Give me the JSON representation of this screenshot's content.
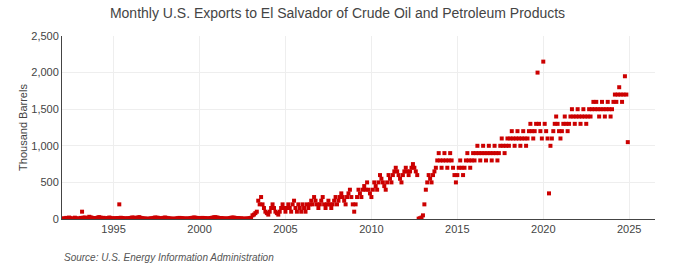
{
  "chart_data": {
    "type": "scatter",
    "title": "Monthly U.S. Exports to El Salvador of Crude Oil and Petroleum Products",
    "ylabel": "Thousand Barrels",
    "source": "Source: U.S. Energy Information Administration",
    "color": "#CC0000",
    "marker": "square",
    "grid": true,
    "xlim": [
      1992.0,
      2026.5
    ],
    "ylim": [
      0,
      2500
    ],
    "xticks": [
      1995,
      2000,
      2005,
      2010,
      2015,
      2020,
      2025
    ],
    "yticks": [
      0,
      500,
      {
        "value": 1000,
        "label": "1,000"
      },
      {
        "value": 1500,
        "label": "1,500"
      },
      {
        "value": 2000,
        "label": "2,000"
      },
      {
        "value": 2500,
        "label": "2,500"
      }
    ],
    "x": [
      1992.083,
      1992.167,
      1992.25,
      1992.333,
      1992.417,
      1992.5,
      1992.583,
      1992.667,
      1992.75,
      1992.833,
      1992.917,
      1993.0,
      1993.083,
      1993.167,
      1993.25,
      1993.333,
      1993.417,
      1993.5,
      1993.583,
      1993.667,
      1993.75,
      1993.833,
      1993.917,
      1994.0,
      1994.083,
      1994.167,
      1994.25,
      1994.333,
      1994.417,
      1994.5,
      1994.583,
      1994.667,
      1994.75,
      1994.833,
      1994.917,
      1995.0,
      1995.083,
      1995.167,
      1995.25,
      1995.333,
      1995.417,
      1995.5,
      1995.583,
      1995.667,
      1995.75,
      1995.833,
      1995.917,
      1996.0,
      1996.083,
      1996.167,
      1996.25,
      1996.333,
      1996.417,
      1996.5,
      1996.583,
      1996.667,
      1996.75,
      1996.833,
      1996.917,
      1997.0,
      1997.083,
      1997.167,
      1997.25,
      1997.333,
      1997.417,
      1997.5,
      1997.583,
      1997.667,
      1997.75,
      1997.833,
      1997.917,
      1998.0,
      1998.083,
      1998.167,
      1998.25,
      1998.333,
      1998.417,
      1998.5,
      1998.583,
      1998.667,
      1998.75,
      1998.833,
      1998.917,
      1999.0,
      1999.083,
      1999.167,
      1999.25,
      1999.333,
      1999.417,
      1999.5,
      1999.583,
      1999.667,
      1999.75,
      1999.833,
      1999.917,
      2000.0,
      2000.083,
      2000.167,
      2000.25,
      2000.333,
      2000.417,
      2000.5,
      2000.583,
      2000.667,
      2000.75,
      2000.833,
      2000.917,
      2001.0,
      2001.083,
      2001.167,
      2001.25,
      2001.333,
      2001.417,
      2001.5,
      2001.583,
      2001.667,
      2001.75,
      2001.833,
      2001.917,
      2002.0,
      2002.083,
      2002.167,
      2002.25,
      2002.333,
      2002.417,
      2002.5,
      2002.583,
      2002.667,
      2002.75,
      2002.833,
      2002.917,
      2003.0,
      2003.083,
      2003.167,
      2003.25,
      2003.333,
      2003.417,
      2003.5,
      2003.583,
      2003.667,
      2003.75,
      2003.833,
      2003.917,
      2004.0,
      2004.083,
      2004.167,
      2004.25,
      2004.333,
      2004.417,
      2004.5,
      2004.583,
      2004.667,
      2004.75,
      2004.833,
      2004.917,
      2005.0,
      2005.083,
      2005.167,
      2005.25,
      2005.333,
      2005.417,
      2005.5,
      2005.583,
      2005.667,
      2005.75,
      2005.833,
      2005.917,
      2006.0,
      2006.083,
      2006.167,
      2006.25,
      2006.333,
      2006.417,
      2006.5,
      2006.583,
      2006.667,
      2006.75,
      2006.833,
      2006.917,
      2007.0,
      2007.083,
      2007.167,
      2007.25,
      2007.333,
      2007.417,
      2007.5,
      2007.583,
      2007.667,
      2007.75,
      2007.833,
      2007.917,
      2008.0,
      2008.083,
      2008.167,
      2008.25,
      2008.333,
      2008.417,
      2008.5,
      2008.583,
      2008.667,
      2008.75,
      2008.833,
      2008.917,
      2009.0,
      2009.083,
      2009.167,
      2009.25,
      2009.333,
      2009.417,
      2009.5,
      2009.583,
      2009.667,
      2009.75,
      2009.833,
      2009.917,
      2010.0,
      2010.083,
      2010.167,
      2010.25,
      2010.333,
      2010.417,
      2010.5,
      2010.583,
      2010.667,
      2010.75,
      2010.833,
      2010.917,
      2011.0,
      2011.083,
      2011.167,
      2011.25,
      2011.333,
      2011.417,
      2011.5,
      2011.583,
      2011.667,
      2011.75,
      2011.833,
      2011.917,
      2012.0,
      2012.083,
      2012.167,
      2012.25,
      2012.333,
      2012.417,
      2012.5,
      2012.583,
      2012.667,
      2012.75,
      2012.833,
      2012.917,
      2013.0,
      2013.083,
      2013.167,
      2013.25,
      2013.333,
      2013.417,
      2013.5,
      2013.583,
      2013.667,
      2013.75,
      2013.833,
      2013.917,
      2014.0,
      2014.083,
      2014.167,
      2014.25,
      2014.333,
      2014.417,
      2014.5,
      2014.583,
      2014.667,
      2014.75,
      2014.833,
      2014.917,
      2015.0,
      2015.083,
      2015.167,
      2015.25,
      2015.333,
      2015.417,
      2015.5,
      2015.583,
      2015.667,
      2015.75,
      2015.833,
      2015.917,
      2016.0,
      2016.083,
      2016.167,
      2016.25,
      2016.333,
      2016.417,
      2016.5,
      2016.583,
      2016.667,
      2016.75,
      2016.833,
      2016.917,
      2017.0,
      2017.083,
      2017.167,
      2017.25,
      2017.333,
      2017.417,
      2017.5,
      2017.583,
      2017.667,
      2017.75,
      2017.833,
      2017.917,
      2018.0,
      2018.083,
      2018.167,
      2018.25,
      2018.333,
      2018.417,
      2018.5,
      2018.583,
      2018.667,
      2018.75,
      2018.833,
      2018.917,
      2019.0,
      2019.083,
      2019.167,
      2019.25,
      2019.333,
      2019.417,
      2019.5,
      2019.583,
      2019.667,
      2019.75,
      2019.833,
      2019.917,
      2020.0,
      2020.083,
      2020.167,
      2020.25,
      2020.333,
      2020.417,
      2020.5,
      2020.583,
      2020.667,
      2020.75,
      2020.833,
      2020.917,
      2021.0,
      2021.083,
      2021.167,
      2021.25,
      2021.333,
      2021.417,
      2021.5,
      2021.583,
      2021.667,
      2021.75,
      2021.833,
      2021.917,
      2022.0,
      2022.083,
      2022.167,
      2022.25,
      2022.333,
      2022.417,
      2022.5,
      2022.583,
      2022.667,
      2022.75,
      2022.833,
      2022.917,
      2023.0,
      2023.083,
      2023.167,
      2023.25,
      2023.333,
      2023.417,
      2023.5,
      2023.583,
      2023.667,
      2023.75,
      2023.833,
      2023.917,
      2024.0,
      2024.083,
      2024.167,
      2024.25,
      2024.333,
      2024.417,
      2024.5,
      2024.583,
      2024.667,
      2024.75,
      2024.833,
      2024.917
    ],
    "values": [
      10,
      5,
      15,
      8,
      20,
      12,
      3,
      6,
      18,
      9,
      4,
      7,
      15,
      100,
      18,
      20,
      12,
      8,
      30,
      22,
      16,
      10,
      14,
      9,
      20,
      25,
      18,
      13,
      16,
      10,
      7,
      12,
      20,
      15,
      8,
      6,
      11,
      9,
      14,
      200,
      17,
      13,
      10,
      8,
      6,
      9,
      12,
      15,
      20,
      18,
      16,
      14,
      20,
      25,
      15,
      10,
      8,
      6,
      4,
      3,
      5,
      8,
      10,
      15,
      20,
      18,
      16,
      10,
      8,
      12,
      16,
      20,
      15,
      10,
      8,
      6,
      4,
      3,
      5,
      8,
      10,
      15,
      12,
      10,
      8,
      6,
      5,
      7,
      9,
      12,
      16,
      20,
      18,
      15,
      13,
      10,
      12,
      15,
      13,
      11,
      9,
      7,
      10,
      14,
      18,
      22,
      25,
      20,
      17,
      14,
      12,
      10,
      8,
      6,
      5,
      8,
      12,
      16,
      20,
      18,
      15,
      13,
      11,
      10,
      8,
      6,
      5,
      4,
      6,
      8,
      12,
      16,
      50,
      60,
      80,
      100,
      250,
      200,
      300,
      200,
      150,
      100,
      80,
      60,
      100,
      150,
      200,
      150,
      100,
      80,
      60,
      100,
      150,
      200,
      150,
      100,
      150,
      200,
      150,
      100,
      200,
      250,
      150,
      100,
      200,
      150,
      100,
      200,
      150,
      100,
      200,
      150,
      200,
      250,
      200,
      300,
      250,
      200,
      150,
      200,
      250,
      300,
      200,
      150,
      200,
      250,
      200,
      150,
      200,
      250,
      300,
      200,
      250,
      300,
      350,
      300,
      250,
      200,
      300,
      350,
      400,
      300,
      200,
      100,
      200,
      300,
      400,
      350,
      300,
      400,
      450,
      400,
      500,
      400,
      350,
      300,
      400,
      500,
      450,
      400,
      500,
      600,
      550,
      500,
      450,
      400,
      500,
      600,
      550,
      500,
      600,
      650,
      700,
      650,
      600,
      550,
      500,
      600,
      650,
      700,
      650,
      600,
      650,
      700,
      750,
      700,
      650,
      600,
      5,
      10,
      20,
      50,
      200,
      400,
      500,
      600,
      550,
      500,
      600,
      650,
      700,
      800,
      900,
      800,
      700,
      800,
      900,
      800,
      700,
      800,
      900,
      800,
      700,
      600,
      500,
      600,
      700,
      800,
      700,
      600,
      700,
      800,
      900,
      800,
      700,
      800,
      900,
      800,
      900,
      1000,
      900,
      800,
      900,
      1000,
      900,
      800,
      900,
      1000,
      900,
      800,
      900,
      1000,
      900,
      800,
      900,
      1000,
      1100,
      1000,
      900,
      1000,
      1100,
      1000,
      1100,
      1200,
      1100,
      1000,
      1100,
      1200,
      1100,
      1000,
      1100,
      1200,
      1100,
      1000,
      1100,
      1200,
      1300,
      1200,
      1100,
      1200,
      1300,
      2000,
      1300,
      1200,
      1100,
      2150,
      1300,
      1200,
      1100,
      350,
      1000,
      1100,
      1200,
      1300,
      1400,
      1300,
      1200,
      1100,
      1200,
      1300,
      1400,
      1300,
      1200,
      1300,
      1400,
      1500,
      1400,
      1300,
      1400,
      1500,
      1400,
      1300,
      1400,
      1500,
      1400,
      1300,
      1400,
      1500,
      1400,
      1500,
      1600,
      1500,
      1600,
      1500,
      1400,
      1500,
      1600,
      1500,
      1400,
      1500,
      1600,
      1500,
      1400,
      1500,
      1600,
      1700,
      1600,
      1700,
      1800,
      1700,
      1600,
      1700,
      1950,
      1700,
      1050
    ]
  }
}
